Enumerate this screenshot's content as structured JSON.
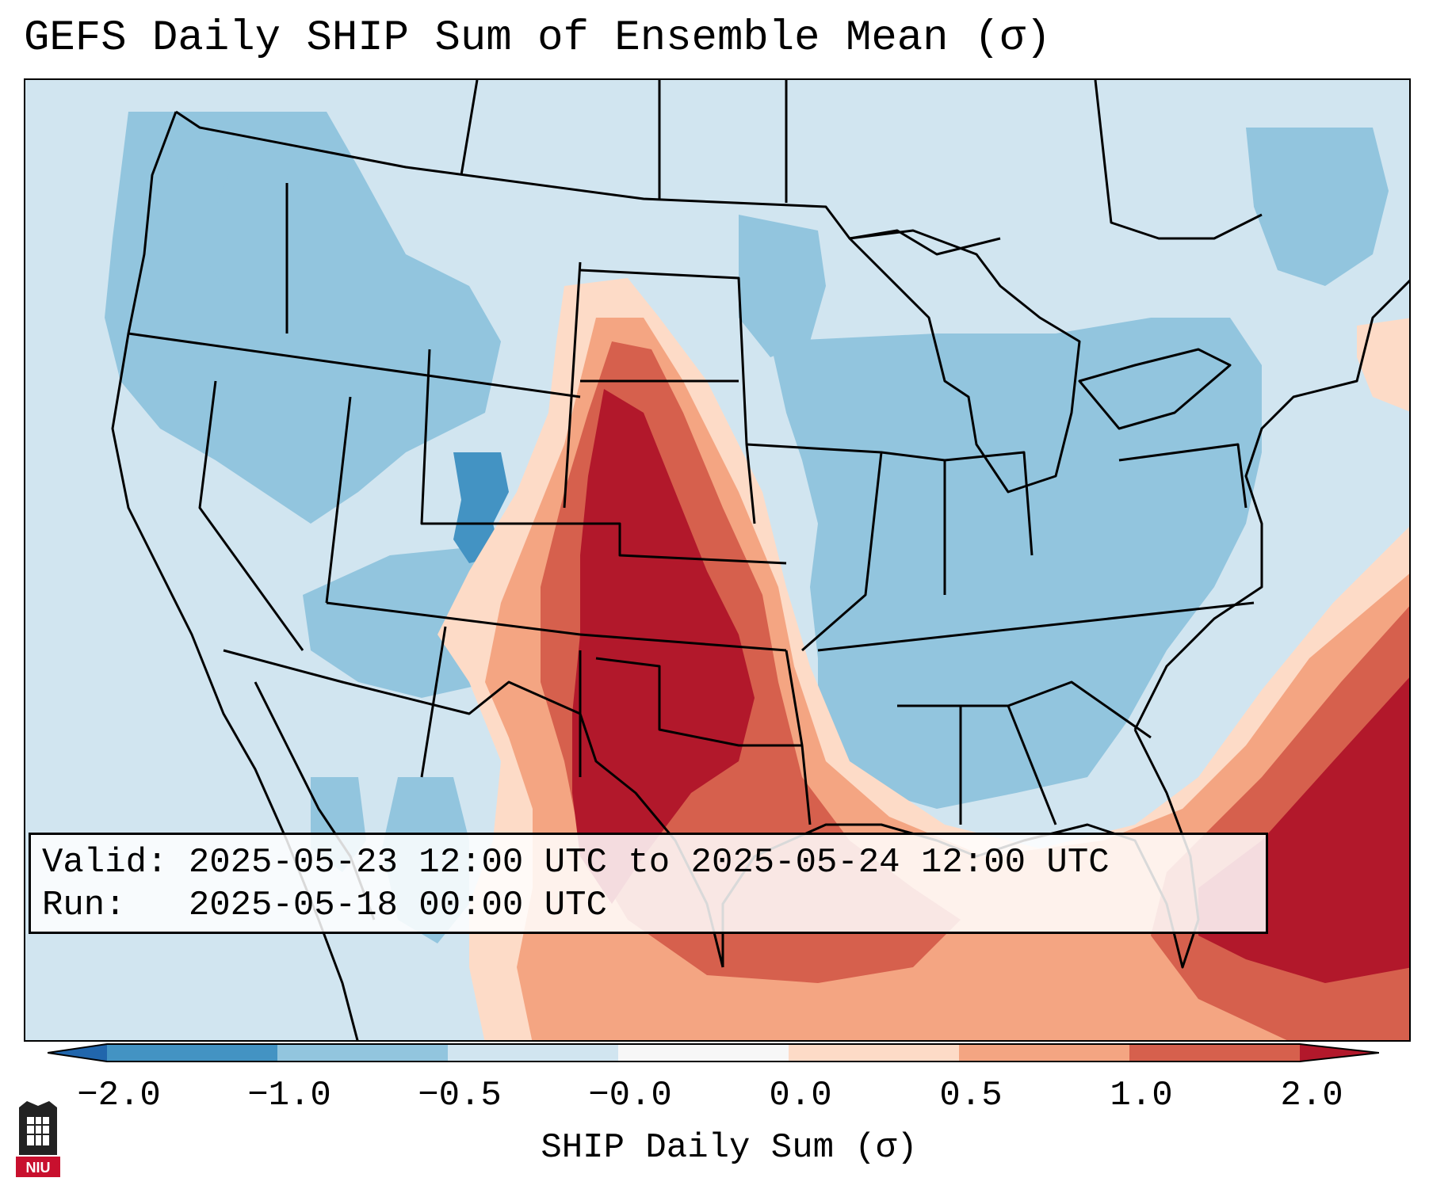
{
  "title": "GEFS Daily SHIP Sum of Ensemble Mean (σ)",
  "info": {
    "valid_label": "Valid:",
    "valid_value": "2025-05-23 12:00 UTC to 2025-05-24 12:00 UTC",
    "run_label": "Run:",
    "run_value": "2025-05-18 00:00 UTC"
  },
  "colorbar": {
    "label": "SHIP Daily Sum (σ)",
    "ticks": [
      "−2.0",
      "−1.0",
      "−0.5",
      "−0.0",
      "0.0",
      "0.5",
      "1.0",
      "2.0"
    ],
    "colors": {
      "lt_neg2": "#2166ac",
      "neg2_neg1": "#4393c3",
      "neg1_neg05": "#92c5de",
      "neg05_0": "#d1e5f0",
      "zero": "#f7f7f7",
      "p0_05": "#fddbc7",
      "p05_1": "#f4a582",
      "p1_2": "#d6604d",
      "gt_2": "#b2182b"
    }
  },
  "logo": {
    "text": "NIU"
  }
}
